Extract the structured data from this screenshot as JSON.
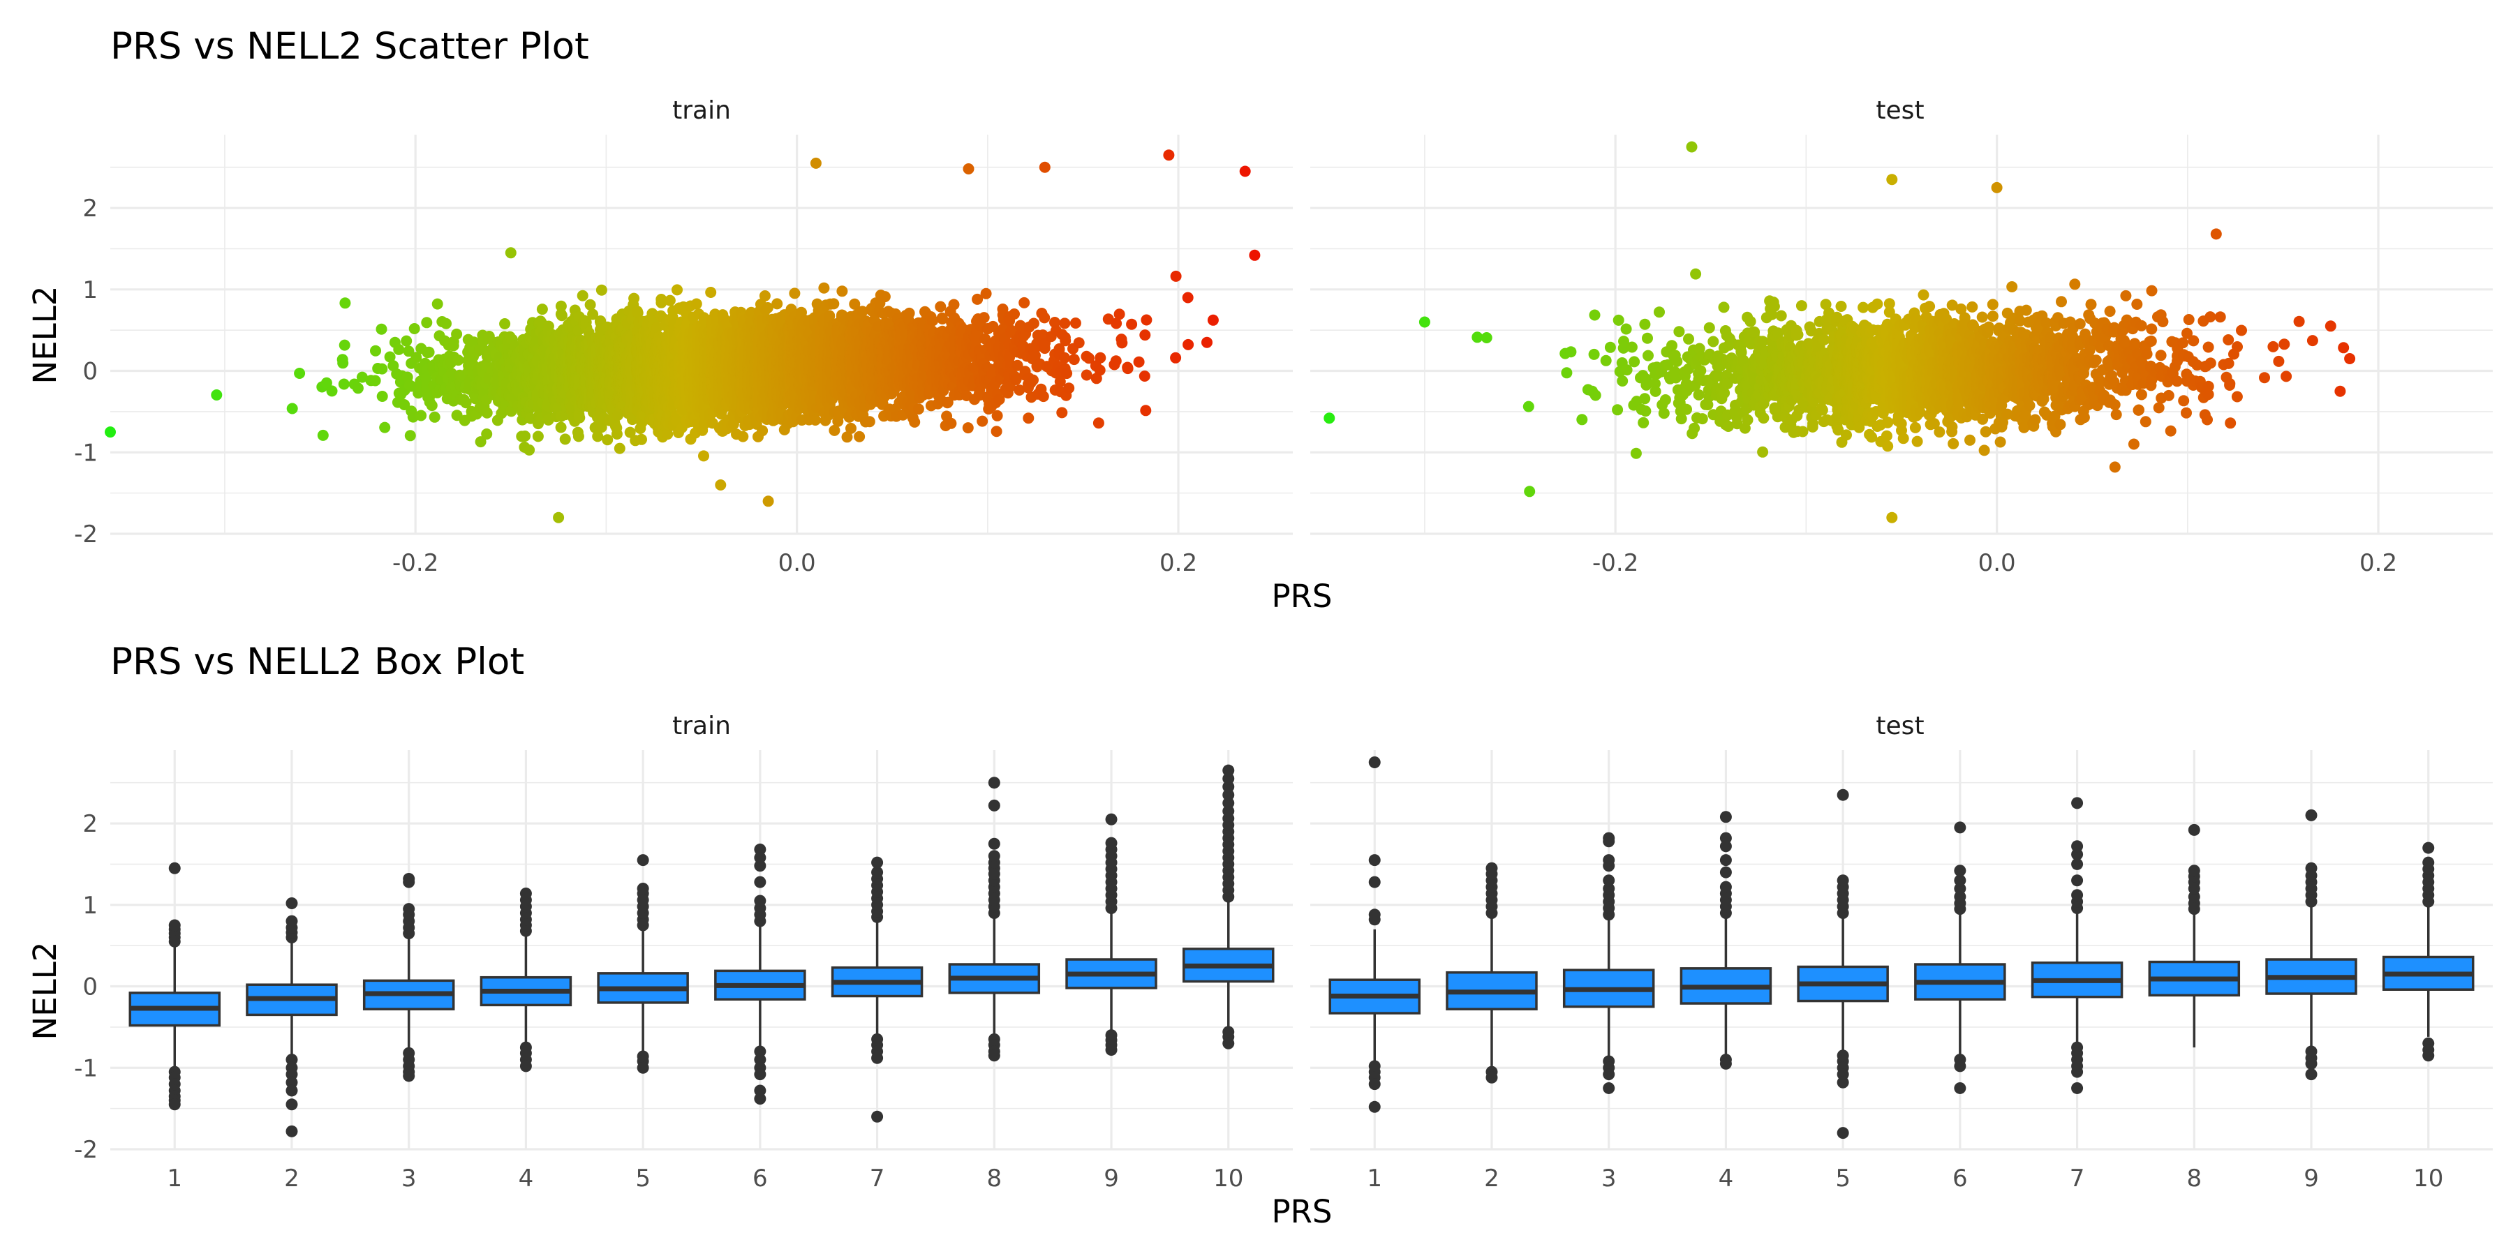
{
  "chart_data": [
    {
      "type": "scatter",
      "title": "PRS vs NELL2 Scatter Plot",
      "xlabel": "PRS",
      "ylabel": "NELL2",
      "facets": [
        "train",
        "test"
      ],
      "xlim": [
        -0.36,
        0.26
      ],
      "ylim": [
        -2.0,
        2.9
      ],
      "x_ticks": [
        "-0.2",
        "0.0",
        "0.2"
      ],
      "x_tick_values": [
        -0.2,
        0.0,
        0.2
      ],
      "y_ticks": [
        "-2",
        "-1",
        "0",
        "1",
        "2"
      ],
      "y_tick_values": [
        -2,
        -1,
        0,
        1,
        2
      ],
      "grid": true,
      "color_gradient": {
        "low": "#22ee11",
        "mid": "#c9b000",
        "high": "#ee1100",
        "mapped_to": "PRS"
      },
      "approx_n_points": {
        "train": 6000,
        "test": 2500
      },
      "trend": {
        "train": {
          "slope": 2.7,
          "intercept": 0.05,
          "sd": 0.3
        },
        "test": {
          "slope": 1.2,
          "intercept": 0.0,
          "sd": 0.32
        }
      },
      "x_center": {
        "train": -0.03,
        "test": -0.04
      },
      "x_sd": {
        "train": 0.07,
        "test": 0.065
      },
      "outliers": {
        "train": [
          [
            -0.36,
            -0.75
          ],
          [
            0.235,
            2.45
          ],
          [
            0.24,
            1.42
          ],
          [
            0.195,
            2.65
          ],
          [
            -0.125,
            -1.8
          ],
          [
            -0.015,
            -1.6
          ],
          [
            0.01,
            2.55
          ],
          [
            0.13,
            2.5
          ],
          [
            -0.15,
            1.45
          ],
          [
            -0.04,
            -1.4
          ],
          [
            0.09,
            2.48
          ],
          [
            0.205,
            0.9
          ],
          [
            0.215,
            0.35
          ]
        ],
        "test": [
          [
            -0.35,
            -0.58
          ],
          [
            -0.16,
            2.75
          ],
          [
            -0.055,
            -1.8
          ],
          [
            -0.245,
            -1.48
          ],
          [
            0.0,
            2.25
          ],
          [
            -0.055,
            2.35
          ],
          [
            0.185,
            0.15
          ],
          [
            0.18,
            -0.25
          ],
          [
            0.115,
            1.68
          ],
          [
            0.175,
            0.55
          ],
          [
            -0.3,
            0.6
          ]
        ]
      }
    },
    {
      "type": "box",
      "title": "PRS vs NELL2 Box Plot",
      "xlabel": "PRS",
      "ylabel": "NELL2",
      "facets": [
        "train",
        "test"
      ],
      "categories": [
        "1",
        "2",
        "3",
        "4",
        "5",
        "6",
        "7",
        "8",
        "9",
        "10"
      ],
      "ylim": [
        -2.0,
        2.9
      ],
      "y_ticks": [
        "-2",
        "-1",
        "0",
        "1",
        "2"
      ],
      "y_tick_values": [
        -2,
        -1,
        0,
        1,
        2
      ],
      "grid": true,
      "box_fill": "#1e90ff",
      "series": [
        {
          "facet": "train",
          "boxes": [
            {
              "q1": -0.48,
              "median": -0.27,
              "q3": -0.08,
              "lo": -1.0,
              "hi": 0.5,
              "outliers": [
                -1.05,
                -1.12,
                -1.2,
                -1.28,
                -1.35,
                -1.4,
                -1.45,
                0.55,
                0.6,
                0.65,
                0.7,
                0.75,
                1.45
              ]
            },
            {
              "q1": -0.35,
              "median": -0.15,
              "q3": 0.02,
              "lo": -0.85,
              "hi": 0.55,
              "outliers": [
                -0.9,
                -1.0,
                -1.08,
                -1.18,
                -1.28,
                -1.45,
                -1.78,
                0.6,
                0.66,
                0.72,
                0.8,
                1.02
              ]
            },
            {
              "q1": -0.28,
              "median": -0.09,
              "q3": 0.07,
              "lo": -0.78,
              "hi": 0.6,
              "outliers": [
                -0.82,
                -0.9,
                -0.98,
                -1.05,
                -1.1,
                0.65,
                0.72,
                0.8,
                0.88,
                0.95,
                1.28,
                1.32
              ]
            },
            {
              "q1": -0.23,
              "median": -0.06,
              "q3": 0.11,
              "lo": -0.7,
              "hi": 0.62,
              "outliers": [
                -0.75,
                -0.82,
                -0.9,
                -0.98,
                0.68,
                0.75,
                0.82,
                0.9,
                0.98,
                1.06,
                1.14
              ]
            },
            {
              "q1": -0.2,
              "median": -0.03,
              "q3": 0.16,
              "lo": -0.8,
              "hi": 0.7,
              "outliers": [
                -0.86,
                -0.92,
                -1.0,
                0.75,
                0.82,
                0.9,
                0.98,
                1.06,
                1.14,
                1.2,
                1.55
              ]
            },
            {
              "q1": -0.16,
              "median": 0.01,
              "q3": 0.19,
              "lo": -0.75,
              "hi": 0.75,
              "outliers": [
                -0.8,
                -0.9,
                -1.0,
                -1.08,
                -1.28,
                -1.38,
                0.8,
                0.88,
                0.96,
                1.05,
                1.28,
                1.48,
                1.58,
                1.68
              ]
            },
            {
              "q1": -0.12,
              "median": 0.05,
              "q3": 0.23,
              "lo": -0.6,
              "hi": 0.8,
              "outliers": [
                -0.65,
                -0.72,
                -0.8,
                -0.88,
                -1.6,
                0.85,
                0.92,
                1.0,
                1.08,
                1.16,
                1.24,
                1.32,
                1.4,
                1.52
              ]
            },
            {
              "q1": -0.08,
              "median": 0.1,
              "q3": 0.27,
              "lo": -0.6,
              "hi": 0.85,
              "outliers": [
                -0.65,
                -0.72,
                -0.8,
                -0.85,
                0.9,
                0.98,
                1.06,
                1.14,
                1.22,
                1.3,
                1.38,
                1.45,
                1.52,
                1.6,
                1.75,
                2.22,
                2.5
              ]
            },
            {
              "q1": -0.02,
              "median": 0.15,
              "q3": 0.33,
              "lo": -0.55,
              "hi": 0.92,
              "outliers": [
                -0.6,
                -0.66,
                -0.72,
                -0.78,
                0.96,
                1.04,
                1.12,
                1.2,
                1.28,
                1.36,
                1.44,
                1.52,
                1.6,
                1.68,
                1.76,
                2.05
              ]
            },
            {
              "q1": 0.06,
              "median": 0.25,
              "q3": 0.46,
              "lo": -0.5,
              "hi": 1.05,
              "outliers": [
                -0.56,
                -0.62,
                -0.7,
                1.1,
                1.18,
                1.26,
                1.34,
                1.42,
                1.5,
                1.58,
                1.66,
                1.74,
                1.82,
                1.9,
                1.98,
                2.06,
                2.15,
                2.25,
                2.35,
                2.45,
                2.55,
                2.65
              ]
            }
          ]
        },
        {
          "facet": "test",
          "boxes": [
            {
              "q1": -0.33,
              "median": -0.12,
              "q3": 0.08,
              "lo": -0.92,
              "hi": 0.7,
              "outliers": [
                -0.98,
                -1.05,
                -1.12,
                -1.2,
                -1.48,
                0.82,
                0.88,
                1.28,
                1.55,
                2.75
              ]
            },
            {
              "q1": -0.28,
              "median": -0.07,
              "q3": 0.17,
              "lo": -0.98,
              "hi": 0.85,
              "outliers": [
                -1.05,
                -1.12,
                0.9,
                0.98,
                1.06,
                1.14,
                1.22,
                1.3,
                1.38,
                1.45
              ]
            },
            {
              "q1": -0.25,
              "median": -0.04,
              "q3": 0.2,
              "lo": -0.88,
              "hi": 0.82,
              "outliers": [
                -0.92,
                -1.0,
                -1.08,
                -1.25,
                0.88,
                0.96,
                1.04,
                1.12,
                1.2,
                1.3,
                1.48,
                1.55,
                1.78,
                1.82
              ]
            },
            {
              "q1": -0.21,
              "median": -0.01,
              "q3": 0.22,
              "lo": -0.85,
              "hi": 0.85,
              "outliers": [
                -0.9,
                -0.95,
                0.9,
                0.98,
                1.06,
                1.14,
                1.22,
                1.4,
                1.55,
                1.72,
                1.82,
                2.08
              ]
            },
            {
              "q1": -0.18,
              "median": 0.03,
              "q3": 0.24,
              "lo": -0.8,
              "hi": 0.85,
              "outliers": [
                -0.85,
                -0.92,
                -1.0,
                -1.08,
                -1.18,
                -1.8,
                0.9,
                0.98,
                1.06,
                1.14,
                1.22,
                1.3,
                2.35
              ]
            },
            {
              "q1": -0.16,
              "median": 0.05,
              "q3": 0.27,
              "lo": -0.85,
              "hi": 0.9,
              "outliers": [
                -0.9,
                -0.98,
                -1.25,
                0.95,
                1.02,
                1.1,
                1.2,
                1.3,
                1.42,
                1.95
              ]
            },
            {
              "q1": -0.13,
              "median": 0.07,
              "q3": 0.29,
              "lo": -0.7,
              "hi": 0.9,
              "outliers": [
                -0.75,
                -0.82,
                -0.9,
                -0.98,
                -1.05,
                -1.25,
                0.96,
                1.04,
                1.12,
                1.3,
                1.5,
                1.62,
                1.72,
                2.25
              ]
            },
            {
              "q1": -0.11,
              "median": 0.09,
              "q3": 0.3,
              "lo": -0.75,
              "hi": 0.88,
              "outliers": [
                0.95,
                1.02,
                1.1,
                1.2,
                1.28,
                1.35,
                1.42,
                1.92
              ]
            },
            {
              "q1": -0.09,
              "median": 0.11,
              "q3": 0.33,
              "lo": -0.75,
              "hi": 0.98,
              "outliers": [
                -0.8,
                -0.88,
                -0.95,
                -1.08,
                1.04,
                1.12,
                1.2,
                1.28,
                1.36,
                1.45,
                2.1
              ]
            },
            {
              "q1": -0.04,
              "median": 0.15,
              "q3": 0.36,
              "lo": -0.62,
              "hi": 0.98,
              "outliers": [
                -0.7,
                -0.78,
                -0.85,
                1.04,
                1.12,
                1.2,
                1.28,
                1.36,
                1.44,
                1.52,
                1.7
              ]
            }
          ]
        }
      ]
    }
  ]
}
